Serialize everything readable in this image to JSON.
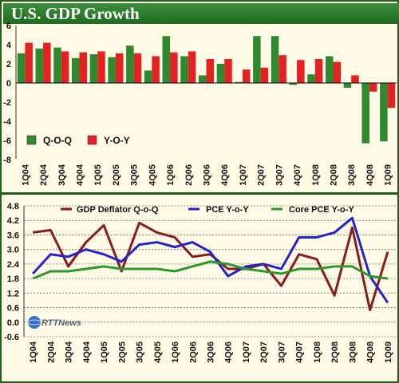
{
  "title": "U.S. GDP Growth",
  "watermark": "RTTNews",
  "colors": {
    "header": "#2f7f2f",
    "qoq": "#2f8a2f",
    "yoy": "#e42222",
    "deflator": "#8b1a1a",
    "pce": "#2424cc",
    "core": "#2a9a2a",
    "grid": "#777777",
    "bg": "#fffbe7"
  },
  "chart_data": [
    {
      "type": "bar",
      "categories": [
        "1Q04",
        "2Q04",
        "3Q04",
        "4Q04",
        "1Q05",
        "2Q05",
        "3Q05",
        "4Q05",
        "1Q06",
        "2Q06",
        "3Q06",
        "4Q06",
        "1Q07",
        "2Q07",
        "3Q07",
        "4Q07",
        "1Q08",
        "2Q08",
        "3Q08",
        "4Q08",
        "1Q09"
      ],
      "tick_labels": [
        "1Q04",
        "2Q04",
        "3Q04",
        "4Q04",
        "1Q05",
        "2Q05",
        "3Q05",
        "4Q05",
        "1Q06",
        "2Q06",
        "3Q06",
        "4Q06",
        "1Q07",
        "2Q07",
        "3Q07",
        "4Q07",
        "1Q08",
        "2Q08",
        "3Q08",
        "4Q08",
        "1Q09"
      ],
      "series": [
        {
          "name": "Q-O-Q",
          "color": "#2f8a2f",
          "values": [
            3.1,
            3.6,
            3.7,
            2.6,
            3.0,
            2.7,
            3.9,
            1.3,
            4.9,
            2.8,
            0.8,
            2.0,
            0.1,
            4.9,
            4.9,
            -0.2,
            0.9,
            2.8,
            -0.5,
            -6.3,
            -6.1
          ]
        },
        {
          "name": "Y-O-Y",
          "color": "#e42222",
          "values": [
            4.2,
            4.2,
            3.3,
            3.2,
            3.3,
            3.1,
            3.1,
            2.8,
            3.2,
            3.3,
            2.5,
            2.5,
            1.4,
            1.6,
            2.9,
            2.4,
            2.5,
            2.2,
            0.8,
            -0.9,
            -2.6
          ]
        }
      ],
      "y_ticks": [
        "6",
        "4",
        "2",
        "0",
        "-2",
        "-4",
        "-6",
        "-8"
      ],
      "ylim": [
        -8,
        6
      ],
      "legend": "bottom-left",
      "grid": false
    },
    {
      "type": "line",
      "categories": [
        "1Q04",
        "2Q04",
        "3Q04",
        "4Q04",
        "1Q05",
        "2Q05",
        "3Q05",
        "4Q05",
        "1Q06",
        "2Q06",
        "3Q06",
        "4Q06",
        "1Q07",
        "2Q07",
        "3Q07",
        "4Q07",
        "1Q08",
        "2Q08",
        "3Q08",
        "4Q08",
        "1Q09"
      ],
      "tick_labels": [
        "1Q04",
        "2Q04",
        "3Q04",
        "4Q04",
        "1Q05",
        "2Q05",
        "3Q05",
        "4Q05",
        "1Q06",
        "2Q06",
        "3Q06",
        "4Q06",
        "1Q07",
        "2Q07",
        "3Q07",
        "4Q07",
        "1Q08",
        "2Q08",
        "3Q08",
        "4Q08",
        "1Q09"
      ],
      "series": [
        {
          "name": "GDP Deflator Q-o-Q",
          "color": "#8b1a1a",
          "values": [
            3.7,
            3.8,
            2.3,
            3.3,
            4.0,
            2.1,
            4.1,
            3.7,
            3.5,
            2.7,
            2.8,
            2.2,
            2.2,
            2.4,
            1.5,
            2.8,
            2.6,
            1.1,
            3.9,
            0.5,
            2.9
          ]
        },
        {
          "name": "PCE Y-o-Y",
          "color": "#2424cc",
          "values": [
            2.0,
            2.8,
            2.7,
            3.0,
            2.8,
            2.5,
            3.2,
            3.3,
            3.1,
            3.3,
            2.9,
            1.9,
            2.3,
            2.4,
            2.2,
            3.5,
            3.5,
            3.7,
            4.3,
            1.9,
            0.8
          ]
        },
        {
          "name": "Core PCE  Y-o-Y",
          "color": "#2a9a2a",
          "values": [
            1.8,
            2.1,
            2.1,
            2.2,
            2.3,
            2.2,
            2.2,
            2.2,
            2.1,
            2.3,
            2.5,
            2.4,
            2.2,
            2.1,
            2.0,
            2.2,
            2.2,
            2.3,
            2.3,
            1.9,
            1.8
          ]
        }
      ],
      "y_ticks": [
        "4.8",
        "4.2",
        "3.6",
        "3.0",
        "2.4",
        "1.8",
        "1.2",
        "0.6",
        "0.0",
        "-0.6"
      ],
      "ylim": [
        -0.6,
        4.8
      ],
      "legend": "top",
      "grid": true
    }
  ]
}
